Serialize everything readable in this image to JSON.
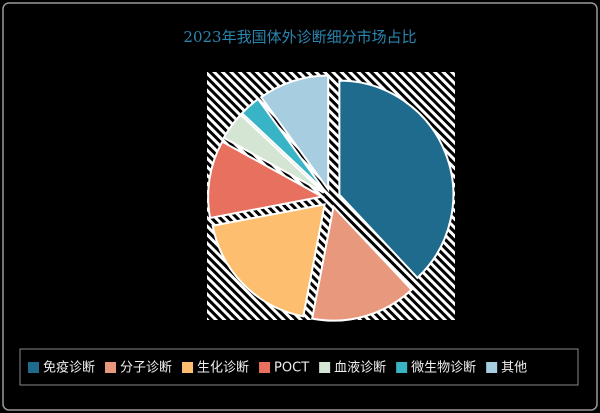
{
  "chart_data": {
    "type": "pie",
    "title": "2023年我国体外诊断细分市场占比",
    "categories": [
      "免疫诊断",
      "分子诊断",
      "生化诊断",
      "POCT",
      "血液诊断",
      "微生物诊断",
      "其他"
    ],
    "values": [
      38,
      15,
      19,
      11,
      4,
      3,
      10
    ],
    "colors": [
      "#1f6b8e",
      "#e8987c",
      "#fdbf6f",
      "#e8705f",
      "#d5e5d4",
      "#39b4c6",
      "#a6cee0"
    ],
    "legend": "bottom"
  }
}
